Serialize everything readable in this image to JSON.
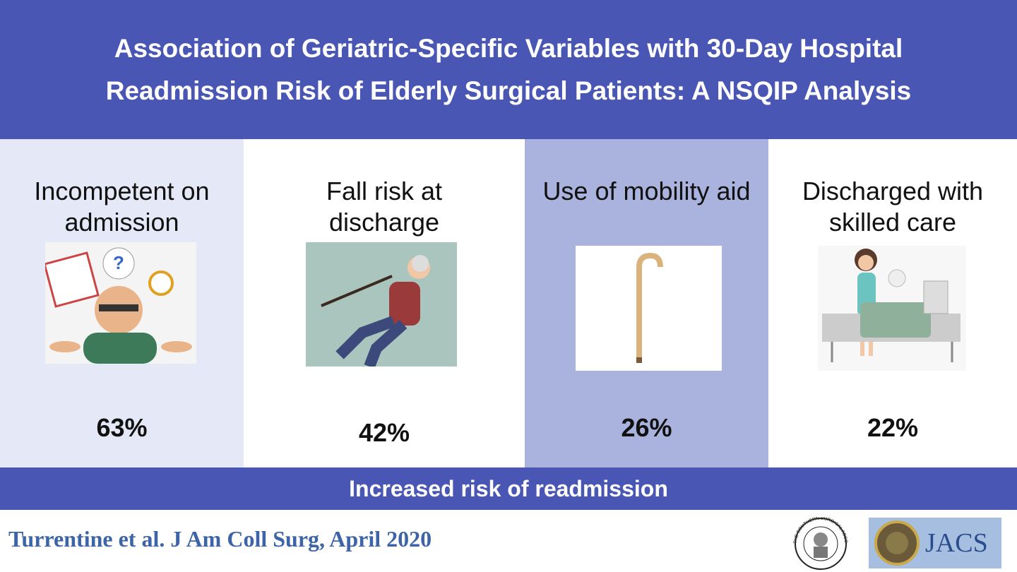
{
  "header": {
    "title_lines": [
      "Association of Geriatric-Specific Variables with 30-Day Hospital",
      "Readmission Risk of Elderly Surgical Patients: A NSQIP Analysis"
    ]
  },
  "panels": [
    {
      "label": "Incompetent on admission",
      "value": "63%"
    },
    {
      "label": "Fall risk at discharge",
      "value": "42%"
    },
    {
      "label": "Use of mobility aid",
      "value": "26%"
    },
    {
      "label": "Discharged with skilled care",
      "value": "22%"
    }
  ],
  "banner": "Increased risk of readmission",
  "footer": {
    "citation": "Turrentine et al. J Am Coll Surg, April 2020",
    "seal_text": "THE SOUTHERN SURGICAL ASSOCIATION",
    "journal": "JACS"
  }
}
